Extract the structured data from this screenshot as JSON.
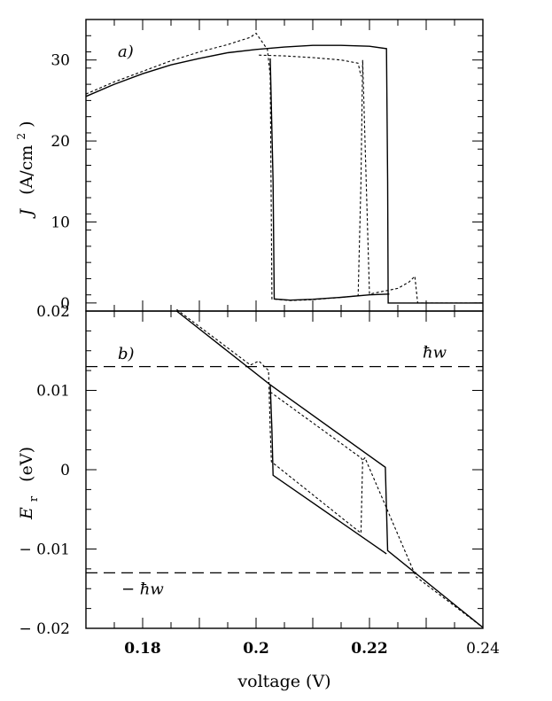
{
  "chart_data": [
    {
      "panel_label": "a)",
      "type": "line",
      "ylabel": "J (A/cm²)",
      "ylabel_parts": {
        "var": "J",
        "units": "(A/cm",
        "exp": "2",
        "close": ")"
      },
      "xlim": [
        0.17,
        0.24
      ],
      "ylim": [
        -1,
        35
      ],
      "yticks": [
        0,
        10,
        20,
        30
      ],
      "ytick_labels": [
        "0",
        "10",
        "20",
        "30"
      ],
      "series": [
        {
          "style": "solid",
          "x": [
            0.17,
            0.175,
            0.18,
            0.185,
            0.19,
            0.195,
            0.2,
            0.205,
            0.21,
            0.215,
            0.22,
            0.223,
            0.2232,
            0.2233,
            0.228,
            0.235,
            0.24
          ],
          "y": [
            25.5,
            27.0,
            28.3,
            29.4,
            30.2,
            30.9,
            31.3,
            31.6,
            31.8,
            31.8,
            31.7,
            31.4,
            15.0,
            0.0,
            0.0,
            0.0,
            0.0
          ]
        },
        {
          "style": "solid",
          "x": [
            0.2025,
            0.203,
            0.2032,
            0.206,
            0.21,
            0.215,
            0.22,
            0.2235
          ],
          "y": [
            30.2,
            15.0,
            0.5,
            0.35,
            0.45,
            0.7,
            1.0,
            1.1
          ]
        },
        {
          "style": "dashed",
          "x": [
            0.17,
            0.175,
            0.18,
            0.185,
            0.19,
            0.195,
            0.199,
            0.2,
            0.202,
            0.2025,
            0.2028,
            0.206,
            0.21,
            0.215,
            0.218,
            0.2185,
            0.2188,
            0.22,
            0.225,
            0.227,
            0.228,
            0.2285,
            0.24
          ],
          "y": [
            25.8,
            27.3,
            28.6,
            29.9,
            31.0,
            31.9,
            32.8,
            33.3,
            31.3,
            28.0,
            0.5,
            0.3,
            0.4,
            0.7,
            0.9,
            15.0,
            30.0,
            1.1,
            1.8,
            2.6,
            3.3,
            0.0,
            0.0
          ]
        },
        {
          "style": "dashed",
          "x": [
            0.2005,
            0.205,
            0.21,
            0.215,
            0.218,
            0.2185
          ],
          "y": [
            30.6,
            30.5,
            30.3,
            30.0,
            29.6,
            28.0
          ]
        }
      ]
    },
    {
      "panel_label": "b)",
      "type": "line",
      "ylabel": "E_r (eV)",
      "ylabel_parts": {
        "var": "E",
        "sub": "r",
        "units": "(eV)"
      },
      "xlabel": "voltage (V)",
      "xlim": [
        0.17,
        0.24
      ],
      "ylim": [
        -0.02,
        0.02
      ],
      "xticks": [
        0.18,
        0.2,
        0.22,
        0.24
      ],
      "xtick_labels": [
        "0.18",
        "0.2",
        "0.22",
        "0.24"
      ],
      "yticks": [
        -0.02,
        -0.01,
        0,
        0.01,
        0.02
      ],
      "ytick_labels": [
        "− 0.02",
        "− 0.01",
        "0",
        "0.01",
        "0.02"
      ],
      "reference_lines": [
        {
          "y": 0.013,
          "label": "ħw"
        },
        {
          "y": -0.013,
          "label": "− ħw"
        }
      ],
      "series": [
        {
          "style": "solid",
          "x": [
            0.186,
            0.2025,
            0.2228,
            0.223,
            0.2232,
            0.24
          ],
          "y": [
            0.02,
            0.0107,
            0.0003,
            -0.005,
            -0.0102,
            -0.0199
          ]
        },
        {
          "style": "solid",
          "x": [
            0.2025,
            0.2028,
            0.203,
            0.223
          ],
          "y": [
            0.0107,
            0.005,
            -0.0007,
            -0.0106
          ]
        },
        {
          "style": "dashed",
          "x": [
            0.186,
            0.199,
            0.2005,
            0.2022,
            0.2025,
            0.2027,
            0.2185,
            0.2188,
            0.2192,
            0.2282,
            0.24
          ],
          "y": [
            0.0202,
            0.0132,
            0.0137,
            0.0125,
            0.005,
            0.001,
            -0.008,
            0.0012,
            0.0015,
            -0.0135,
            -0.0199
          ]
        },
        {
          "style": "dashed",
          "x": [
            0.2025,
            0.2185,
            0.2188
          ],
          "y": [
            0.0098,
            0.0015,
            0.0012
          ]
        }
      ]
    }
  ]
}
